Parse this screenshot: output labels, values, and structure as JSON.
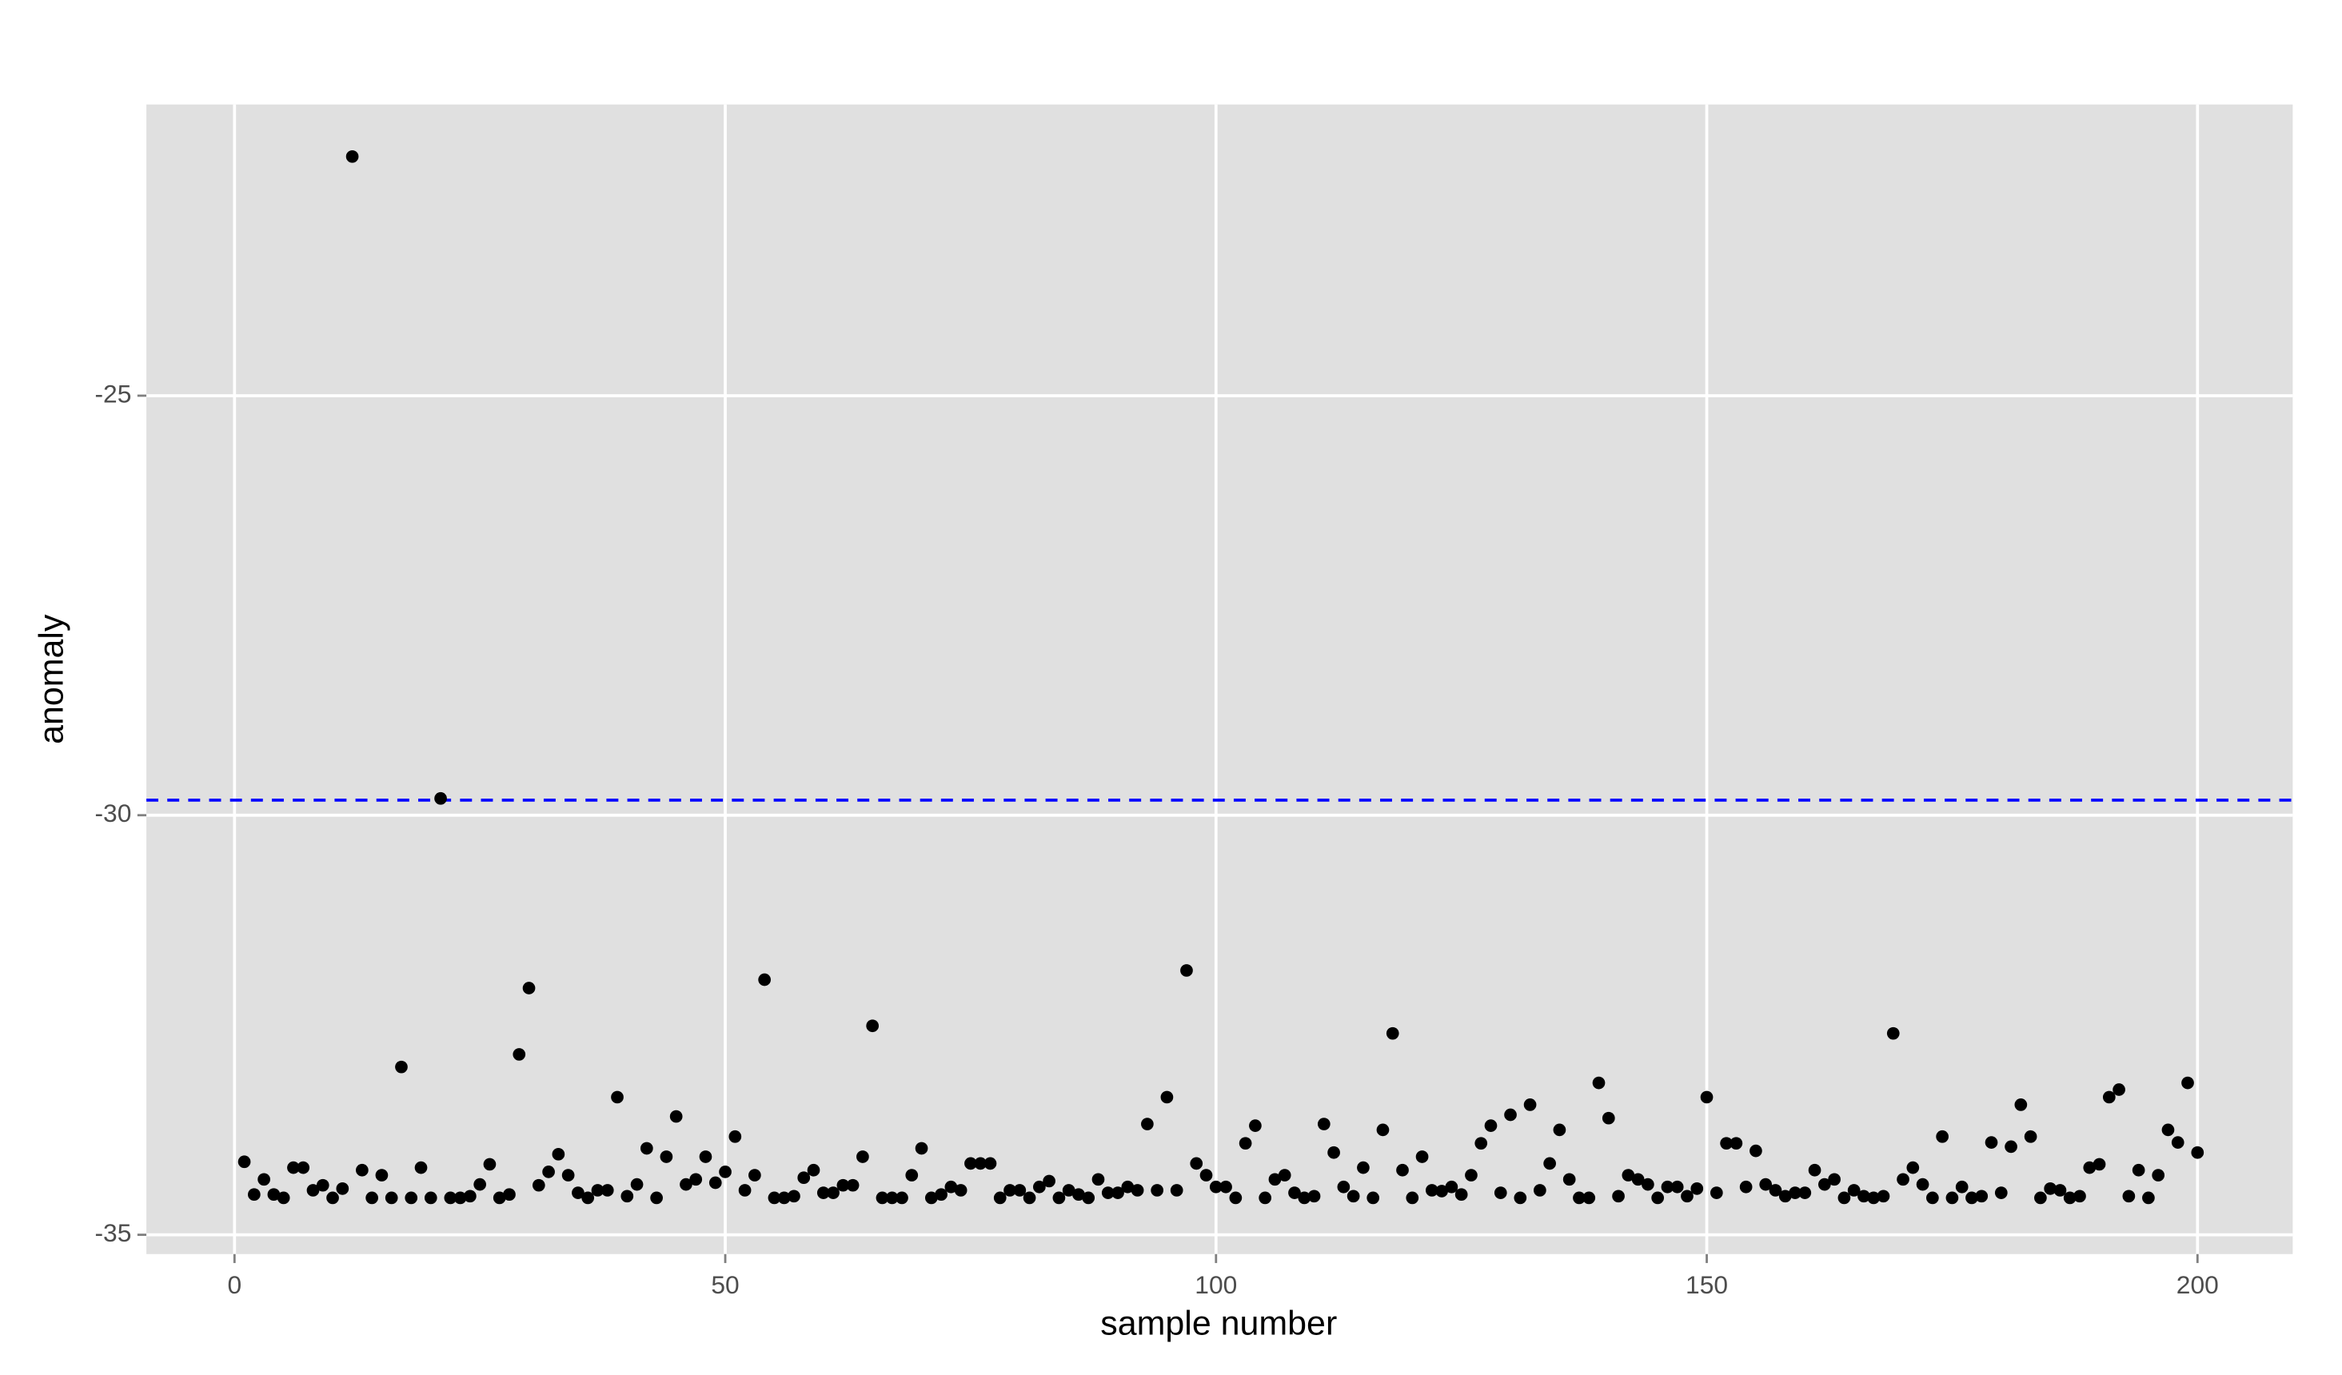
{
  "chart_data": {
    "type": "scatter",
    "x_label": "sample number",
    "y_label": "anomaly",
    "x": [
      1,
      2,
      3,
      4,
      5,
      6,
      7,
      8,
      9,
      10,
      11,
      12,
      13,
      14,
      15,
      16,
      17,
      18,
      19,
      20,
      21,
      22,
      23,
      24,
      25,
      26,
      27,
      28,
      29,
      30,
      31,
      32,
      33,
      34,
      35,
      36,
      37,
      38,
      39,
      40,
      41,
      42,
      43,
      44,
      45,
      46,
      47,
      48,
      49,
      50,
      51,
      52,
      53,
      54,
      55,
      56,
      57,
      58,
      59,
      60,
      61,
      62,
      63,
      64,
      65,
      66,
      67,
      68,
      69,
      70,
      71,
      72,
      73,
      74,
      75,
      76,
      77,
      78,
      79,
      80,
      81,
      82,
      83,
      84,
      85,
      86,
      87,
      88,
      89,
      90,
      91,
      92,
      93,
      94,
      95,
      96,
      97,
      98,
      99,
      100,
      101,
      102,
      103,
      104,
      105,
      106,
      107,
      108,
      109,
      110,
      111,
      112,
      113,
      114,
      115,
      116,
      117,
      118,
      119,
      120,
      121,
      122,
      123,
      124,
      125,
      126,
      127,
      128,
      129,
      130,
      131,
      132,
      133,
      134,
      135,
      136,
      137,
      138,
      139,
      140,
      141,
      142,
      143,
      144,
      145,
      146,
      147,
      148,
      149,
      150,
      151,
      152,
      153,
      154,
      155,
      156,
      157,
      158,
      159,
      160,
      161,
      162,
      163,
      164,
      165,
      166,
      167,
      168,
      169,
      170,
      171,
      172,
      173,
      174,
      175,
      176,
      177,
      178,
      179,
      180,
      181,
      182,
      183,
      184,
      185,
      186,
      187,
      188,
      189,
      190,
      191,
      192,
      193,
      194,
      195,
      196,
      197,
      198,
      199,
      200
    ],
    "values": [
      -34.13,
      -34.52,
      -34.34,
      -34.52,
      -34.56,
      -34.2,
      -34.2,
      -34.47,
      -34.41,
      -34.56,
      -34.45,
      -22.15,
      -34.23,
      -34.56,
      -34.29,
      -34.56,
      -33.0,
      -34.56,
      -34.2,
      -34.56,
      -29.8,
      -34.56,
      -34.56,
      -34.54,
      -34.4,
      -34.16,
      -34.56,
      -34.52,
      -32.85,
      -32.06,
      -34.41,
      -34.25,
      -34.04,
      -34.29,
      -34.5,
      -34.56,
      -34.47,
      -34.47,
      -33.36,
      -34.54,
      -34.4,
      -33.97,
      -34.56,
      -34.07,
      -33.59,
      -34.4,
      -34.34,
      -34.07,
      -34.38,
      -34.25,
      -33.83,
      -34.47,
      -34.29,
      -31.96,
      -34.56,
      -34.56,
      -34.54,
      -34.32,
      -34.23,
      -34.5,
      -34.5,
      -34.41,
      -34.41,
      -34.07,
      -32.51,
      -34.56,
      -34.56,
      -34.56,
      -34.29,
      -33.97,
      -34.56,
      -34.52,
      -34.43,
      -34.47,
      -34.15,
      -34.15,
      -34.15,
      -34.56,
      -34.47,
      -34.47,
      -34.56,
      -34.43,
      -34.36,
      -34.56,
      -34.47,
      -34.52,
      -34.56,
      -34.34,
      -34.5,
      -34.5,
      -34.43,
      -34.47,
      -33.68,
      -34.47,
      -33.36,
      -34.47,
      -31.85,
      -34.15,
      -34.29,
      -34.43,
      -34.43,
      -34.56,
      -33.91,
      -33.7,
      -34.56,
      -34.34,
      -34.29,
      -34.5,
      -34.56,
      -34.54,
      -33.68,
      -34.02,
      -34.43,
      -34.54,
      -34.2,
      -34.56,
      -33.75,
      -32.6,
      -34.23,
      -34.56,
      -34.07,
      -34.47,
      -34.48,
      -34.43,
      -34.52,
      -34.29,
      -33.91,
      -33.7,
      -34.5,
      -33.57,
      -34.56,
      -33.45,
      -34.47,
      -34.15,
      -33.75,
      -34.34,
      -34.56,
      -34.56,
      -33.19,
      -33.61,
      -34.54,
      -34.29,
      -34.34,
      -34.4,
      -34.56,
      -34.43,
      -34.43,
      -34.54,
      -34.45,
      -33.36,
      -34.5,
      -33.91,
      -33.91,
      -34.43,
      -34.0,
      -34.4,
      -34.47,
      -34.54,
      -34.5,
      -34.5,
      -34.23,
      -34.4,
      -34.34,
      -34.56,
      -34.47,
      -34.54,
      -34.56,
      -34.54,
      -32.6,
      -34.34,
      -34.2,
      -34.4,
      -34.56,
      -33.83,
      -34.56,
      -34.43,
      -34.56,
      -34.54,
      -33.9,
      -34.5,
      -33.95,
      -33.45,
      -33.83,
      -34.56,
      -34.45,
      -34.47,
      -34.56,
      -34.54,
      -34.2,
      -34.16,
      -33.36,
      -33.27,
      -34.54,
      -34.23,
      -34.56,
      -34.29,
      -33.75,
      -33.9,
      -33.19,
      -34.02
    ],
    "color": "#000000",
    "xlim": [
      -8.98,
      209.7
    ],
    "ylim": [
      -35.23,
      -21.53
    ],
    "xticks": [
      0,
      50,
      100,
      150,
      200
    ],
    "yticks": [
      -35,
      -30,
      -25
    ],
    "grid": true,
    "hline": {
      "value": -29.82,
      "color": "#0000ff"
    }
  }
}
